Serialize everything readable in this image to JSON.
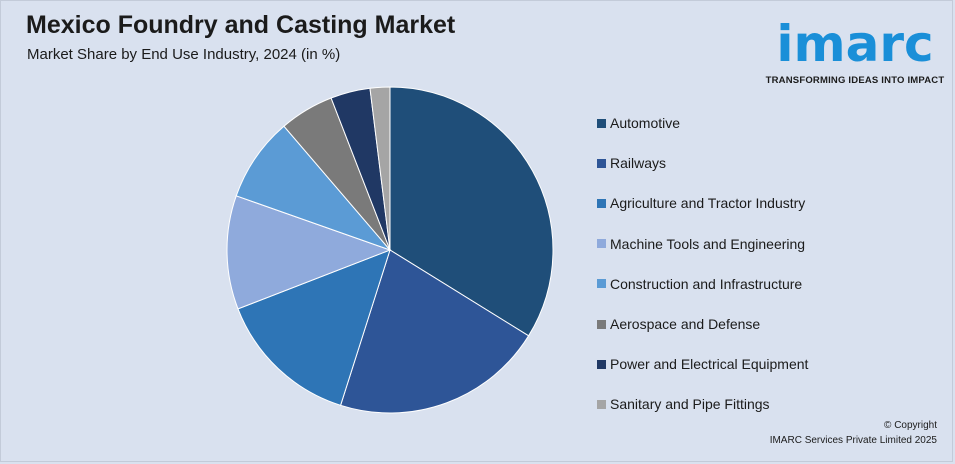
{
  "header": {
    "title": "Mexico Foundry and Casting Market",
    "subtitle": "Market Share by End Use Industry, 2024 (in %)"
  },
  "logo": {
    "word": "imarc",
    "tagline": "TRANSFORMING IDEAS INTO IMPACT",
    "color": "#1a8fd8"
  },
  "footer": {
    "copyright": "© Copyright",
    "company": "IMARC Services Private Limited 2025"
  },
  "chart_data": {
    "type": "pie",
    "categories": [
      "Automotive",
      "Railways",
      "Agriculture and Tractor Industry",
      "Machine Tools and Engineering",
      "Construction and Infrastructure",
      "Aerospace and Defense",
      "Power and Electrical Equipment",
      "Sanitary and Pipe Fittings"
    ],
    "values": [
      34.5,
      21.5,
      14.5,
      11.5,
      8.5,
      5.5,
      4,
      2
    ],
    "colors": [
      "#1f4e79",
      "#2e5597",
      "#2e75b6",
      "#8faadc",
      "#5b9bd5",
      "#7a7a7a",
      "#203864",
      "#a5a5a5"
    ],
    "legend_position": "right"
  }
}
